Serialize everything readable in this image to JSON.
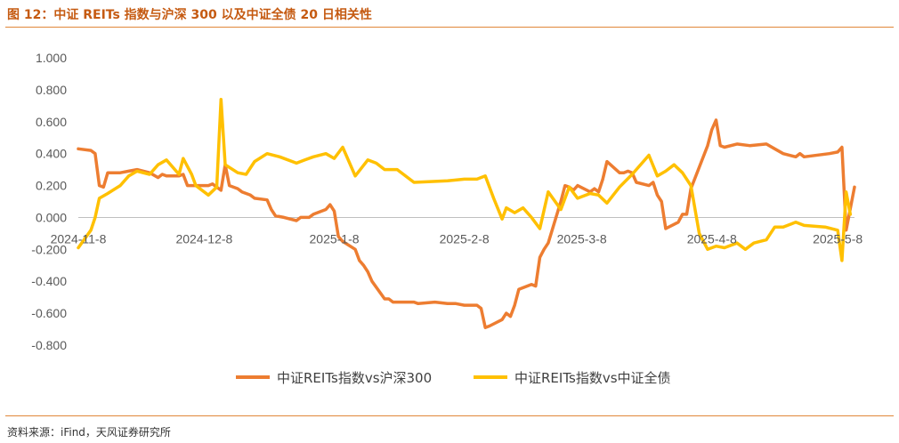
{
  "header": {
    "title": "图 12：中证 REITs 指数与沪深 300 以及中证全债 20 日相关性"
  },
  "footer": {
    "source": "资料来源：iFind，天风证券研究所"
  },
  "chart_data": {
    "type": "line",
    "ylim": [
      -0.8,
      1.0
    ],
    "y_ticks": [
      1.0,
      0.8,
      0.6,
      0.4,
      0.2,
      0.0,
      -0.2,
      -0.4,
      -0.6,
      -0.8
    ],
    "y_tick_labels": [
      "1.000",
      "0.800",
      "0.600",
      "0.400",
      "0.200",
      "0.000",
      "-0.200",
      "-0.400",
      "-0.600",
      "-0.800"
    ],
    "x_range": [
      "2024-11-08",
      "2025-05-12"
    ],
    "x_tick_labels": [
      "2024-11-8",
      "2024-12-8",
      "2025-1-8",
      "2025-2-8",
      "2025-3-8",
      "2025-4-8",
      "2025-5-8"
    ],
    "x_tick_dates": [
      "2024-11-08",
      "2024-12-08",
      "2025-01-08",
      "2025-02-08",
      "2025-03-08",
      "2025-04-08",
      "2025-05-08"
    ],
    "legend_position": "bottom",
    "grid": false,
    "series": [
      {
        "name": "中证REITs指数vs沪深300",
        "color": "#ED7D31",
        "points": [
          [
            "2024-11-08",
            0.43
          ],
          [
            "2024-11-11",
            0.42
          ],
          [
            "2024-11-12",
            0.4
          ],
          [
            "2024-11-13",
            0.2
          ],
          [
            "2024-11-14",
            0.19
          ],
          [
            "2024-11-15",
            0.28
          ],
          [
            "2024-11-18",
            0.28
          ],
          [
            "2024-11-20",
            0.29
          ],
          [
            "2024-11-22",
            0.3
          ],
          [
            "2024-11-25",
            0.28
          ],
          [
            "2024-11-27",
            0.25
          ],
          [
            "2024-11-28",
            0.27
          ],
          [
            "2024-11-29",
            0.26
          ],
          [
            "2024-12-02",
            0.26
          ],
          [
            "2024-12-03",
            0.27
          ],
          [
            "2024-12-04",
            0.2
          ],
          [
            "2024-12-06",
            0.2
          ],
          [
            "2024-12-09",
            0.2
          ],
          [
            "2024-12-10",
            0.21
          ],
          [
            "2024-12-11",
            0.19
          ],
          [
            "2024-12-12",
            0.17
          ],
          [
            "2024-12-13",
            0.33
          ],
          [
            "2024-12-14",
            0.2
          ],
          [
            "2024-12-16",
            0.18
          ],
          [
            "2024-12-17",
            0.16
          ],
          [
            "2024-12-19",
            0.14
          ],
          [
            "2024-12-20",
            0.12
          ],
          [
            "2024-12-23",
            0.11
          ],
          [
            "2024-12-24",
            0.05
          ],
          [
            "2024-12-25",
            0.01
          ],
          [
            "2024-12-27",
            0.0
          ],
          [
            "2024-12-30",
            -0.02
          ],
          [
            "2024-12-31",
            0.0
          ],
          [
            "2025-01-02",
            0.0
          ],
          [
            "2025-01-03",
            0.02
          ],
          [
            "2025-01-06",
            0.05
          ],
          [
            "2025-01-07",
            0.08
          ],
          [
            "2025-01-08",
            0.04
          ],
          [
            "2025-01-09",
            -0.12
          ],
          [
            "2025-01-10",
            -0.15
          ],
          [
            "2025-01-13",
            -0.2
          ],
          [
            "2025-01-14",
            -0.27
          ],
          [
            "2025-01-15",
            -0.3
          ],
          [
            "2025-01-16",
            -0.34
          ],
          [
            "2025-01-17",
            -0.4
          ],
          [
            "2025-01-20",
            -0.51
          ],
          [
            "2025-01-21",
            -0.51
          ],
          [
            "2025-01-22",
            -0.53
          ],
          [
            "2025-01-24",
            -0.53
          ],
          [
            "2025-01-27",
            -0.53
          ],
          [
            "2025-01-28",
            -0.54
          ],
          [
            "2025-02-01",
            -0.53
          ],
          [
            "2025-02-04",
            -0.54
          ],
          [
            "2025-02-06",
            -0.54
          ],
          [
            "2025-02-08",
            -0.55
          ],
          [
            "2025-02-11",
            -0.55
          ],
          [
            "2025-02-12",
            -0.57
          ],
          [
            "2025-02-13",
            -0.69
          ],
          [
            "2025-02-14",
            -0.68
          ],
          [
            "2025-02-17",
            -0.64
          ],
          [
            "2025-02-18",
            -0.6
          ],
          [
            "2025-02-19",
            -0.62
          ],
          [
            "2025-02-20",
            -0.55
          ],
          [
            "2025-02-21",
            -0.45
          ],
          [
            "2025-02-24",
            -0.42
          ],
          [
            "2025-02-25",
            -0.43
          ],
          [
            "2025-02-26",
            -0.25
          ],
          [
            "2025-02-27",
            -0.2
          ],
          [
            "2025-02-28",
            -0.16
          ],
          [
            "2025-03-03",
            0.1
          ],
          [
            "2025-03-04",
            0.2
          ],
          [
            "2025-03-05",
            0.19
          ],
          [
            "2025-03-06",
            0.17
          ],
          [
            "2025-03-07",
            0.2
          ],
          [
            "2025-03-10",
            0.16
          ],
          [
            "2025-03-11",
            0.18
          ],
          [
            "2025-03-12",
            0.16
          ],
          [
            "2025-03-13",
            0.24
          ],
          [
            "2025-03-14",
            0.35
          ],
          [
            "2025-03-17",
            0.28
          ],
          [
            "2025-03-18",
            0.28
          ],
          [
            "2025-03-19",
            0.29
          ],
          [
            "2025-03-20",
            0.28
          ],
          [
            "2025-03-21",
            0.22
          ],
          [
            "2025-03-24",
            0.2
          ],
          [
            "2025-03-25",
            0.22
          ],
          [
            "2025-03-26",
            0.14
          ],
          [
            "2025-03-27",
            0.1
          ],
          [
            "2025-03-28",
            -0.07
          ],
          [
            "2025-03-31",
            -0.03
          ],
          [
            "2025-04-01",
            0.02
          ],
          [
            "2025-04-02",
            0.02
          ],
          [
            "2025-04-03",
            0.18
          ],
          [
            "2025-04-07",
            0.45
          ],
          [
            "2025-04-08",
            0.55
          ],
          [
            "2025-04-09",
            0.61
          ],
          [
            "2025-04-10",
            0.45
          ],
          [
            "2025-04-11",
            0.44
          ],
          [
            "2025-04-14",
            0.46
          ],
          [
            "2025-04-17",
            0.45
          ],
          [
            "2025-04-21",
            0.46
          ],
          [
            "2025-04-23",
            0.43
          ],
          [
            "2025-04-25",
            0.4
          ],
          [
            "2025-04-28",
            0.38
          ],
          [
            "2025-04-29",
            0.4
          ],
          [
            "2025-04-30",
            0.38
          ],
          [
            "2025-05-06",
            0.4
          ],
          [
            "2025-05-08",
            0.41
          ],
          [
            "2025-05-09",
            0.44
          ],
          [
            "2025-05-10",
            -0.08
          ],
          [
            "2025-05-12",
            0.19
          ]
        ]
      },
      {
        "name": "中证REITs指数vs中证全债",
        "color": "#FFC000",
        "points": [
          [
            "2024-11-08",
            -0.19
          ],
          [
            "2024-11-11",
            -0.08
          ],
          [
            "2024-11-12",
            0.0
          ],
          [
            "2024-11-13",
            0.12
          ],
          [
            "2024-11-15",
            0.15
          ],
          [
            "2024-11-18",
            0.2
          ],
          [
            "2024-11-20",
            0.26
          ],
          [
            "2024-11-22",
            0.29
          ],
          [
            "2024-11-25",
            0.27
          ],
          [
            "2024-11-27",
            0.33
          ],
          [
            "2024-11-29",
            0.36
          ],
          [
            "2024-12-02",
            0.27
          ],
          [
            "2024-12-03",
            0.37
          ],
          [
            "2024-12-05",
            0.27
          ],
          [
            "2024-12-06",
            0.2
          ],
          [
            "2024-12-09",
            0.14
          ],
          [
            "2024-12-11",
            0.19
          ],
          [
            "2024-12-12",
            0.74
          ],
          [
            "2024-12-13",
            0.33
          ],
          [
            "2024-12-16",
            0.28
          ],
          [
            "2024-12-18",
            0.27
          ],
          [
            "2024-12-20",
            0.35
          ],
          [
            "2024-12-23",
            0.4
          ],
          [
            "2024-12-26",
            0.38
          ],
          [
            "2024-12-30",
            0.34
          ],
          [
            "2025-01-01",
            0.36
          ],
          [
            "2025-01-03",
            0.38
          ],
          [
            "2025-01-06",
            0.4
          ],
          [
            "2025-01-08",
            0.37
          ],
          [
            "2025-01-10",
            0.44
          ],
          [
            "2025-01-13",
            0.26
          ],
          [
            "2025-01-16",
            0.36
          ],
          [
            "2025-01-18",
            0.34
          ],
          [
            "2025-01-20",
            0.3
          ],
          [
            "2025-01-23",
            0.3
          ],
          [
            "2025-01-27",
            0.22
          ],
          [
            "2025-02-04",
            0.23
          ],
          [
            "2025-02-08",
            0.24
          ],
          [
            "2025-02-11",
            0.24
          ],
          [
            "2025-02-13",
            0.26
          ],
          [
            "2025-02-15",
            0.12
          ],
          [
            "2025-02-17",
            -0.01
          ],
          [
            "2025-02-18",
            0.06
          ],
          [
            "2025-02-20",
            0.03
          ],
          [
            "2025-02-22",
            0.06
          ],
          [
            "2025-02-24",
            0.0
          ],
          [
            "2025-02-26",
            -0.07
          ],
          [
            "2025-02-28",
            0.16
          ],
          [
            "2025-03-03",
            0.05
          ],
          [
            "2025-03-05",
            0.19
          ],
          [
            "2025-03-07",
            0.12
          ],
          [
            "2025-03-10",
            0.15
          ],
          [
            "2025-03-12",
            0.14
          ],
          [
            "2025-03-14",
            0.09
          ],
          [
            "2025-03-17",
            0.19
          ],
          [
            "2025-03-20",
            0.27
          ],
          [
            "2025-03-24",
            0.39
          ],
          [
            "2025-03-26",
            0.26
          ],
          [
            "2025-03-28",
            0.29
          ],
          [
            "2025-03-30",
            0.33
          ],
          [
            "2025-04-01",
            0.28
          ],
          [
            "2025-04-03",
            0.2
          ],
          [
            "2025-04-05",
            -0.1
          ],
          [
            "2025-04-07",
            -0.2
          ],
          [
            "2025-04-09",
            -0.18
          ],
          [
            "2025-04-11",
            -0.19
          ],
          [
            "2025-04-14",
            -0.16
          ],
          [
            "2025-04-16",
            -0.2
          ],
          [
            "2025-04-18",
            -0.16
          ],
          [
            "2025-04-21",
            -0.14
          ],
          [
            "2025-04-23",
            -0.06
          ],
          [
            "2025-04-25",
            -0.06
          ],
          [
            "2025-04-28",
            -0.03
          ],
          [
            "2025-04-30",
            -0.05
          ],
          [
            "2025-05-05",
            -0.06
          ],
          [
            "2025-05-08",
            -0.08
          ],
          [
            "2025-05-09",
            -0.27
          ],
          [
            "2025-05-10",
            0.16
          ],
          [
            "2025-05-11",
            0.02
          ]
        ]
      }
    ]
  }
}
